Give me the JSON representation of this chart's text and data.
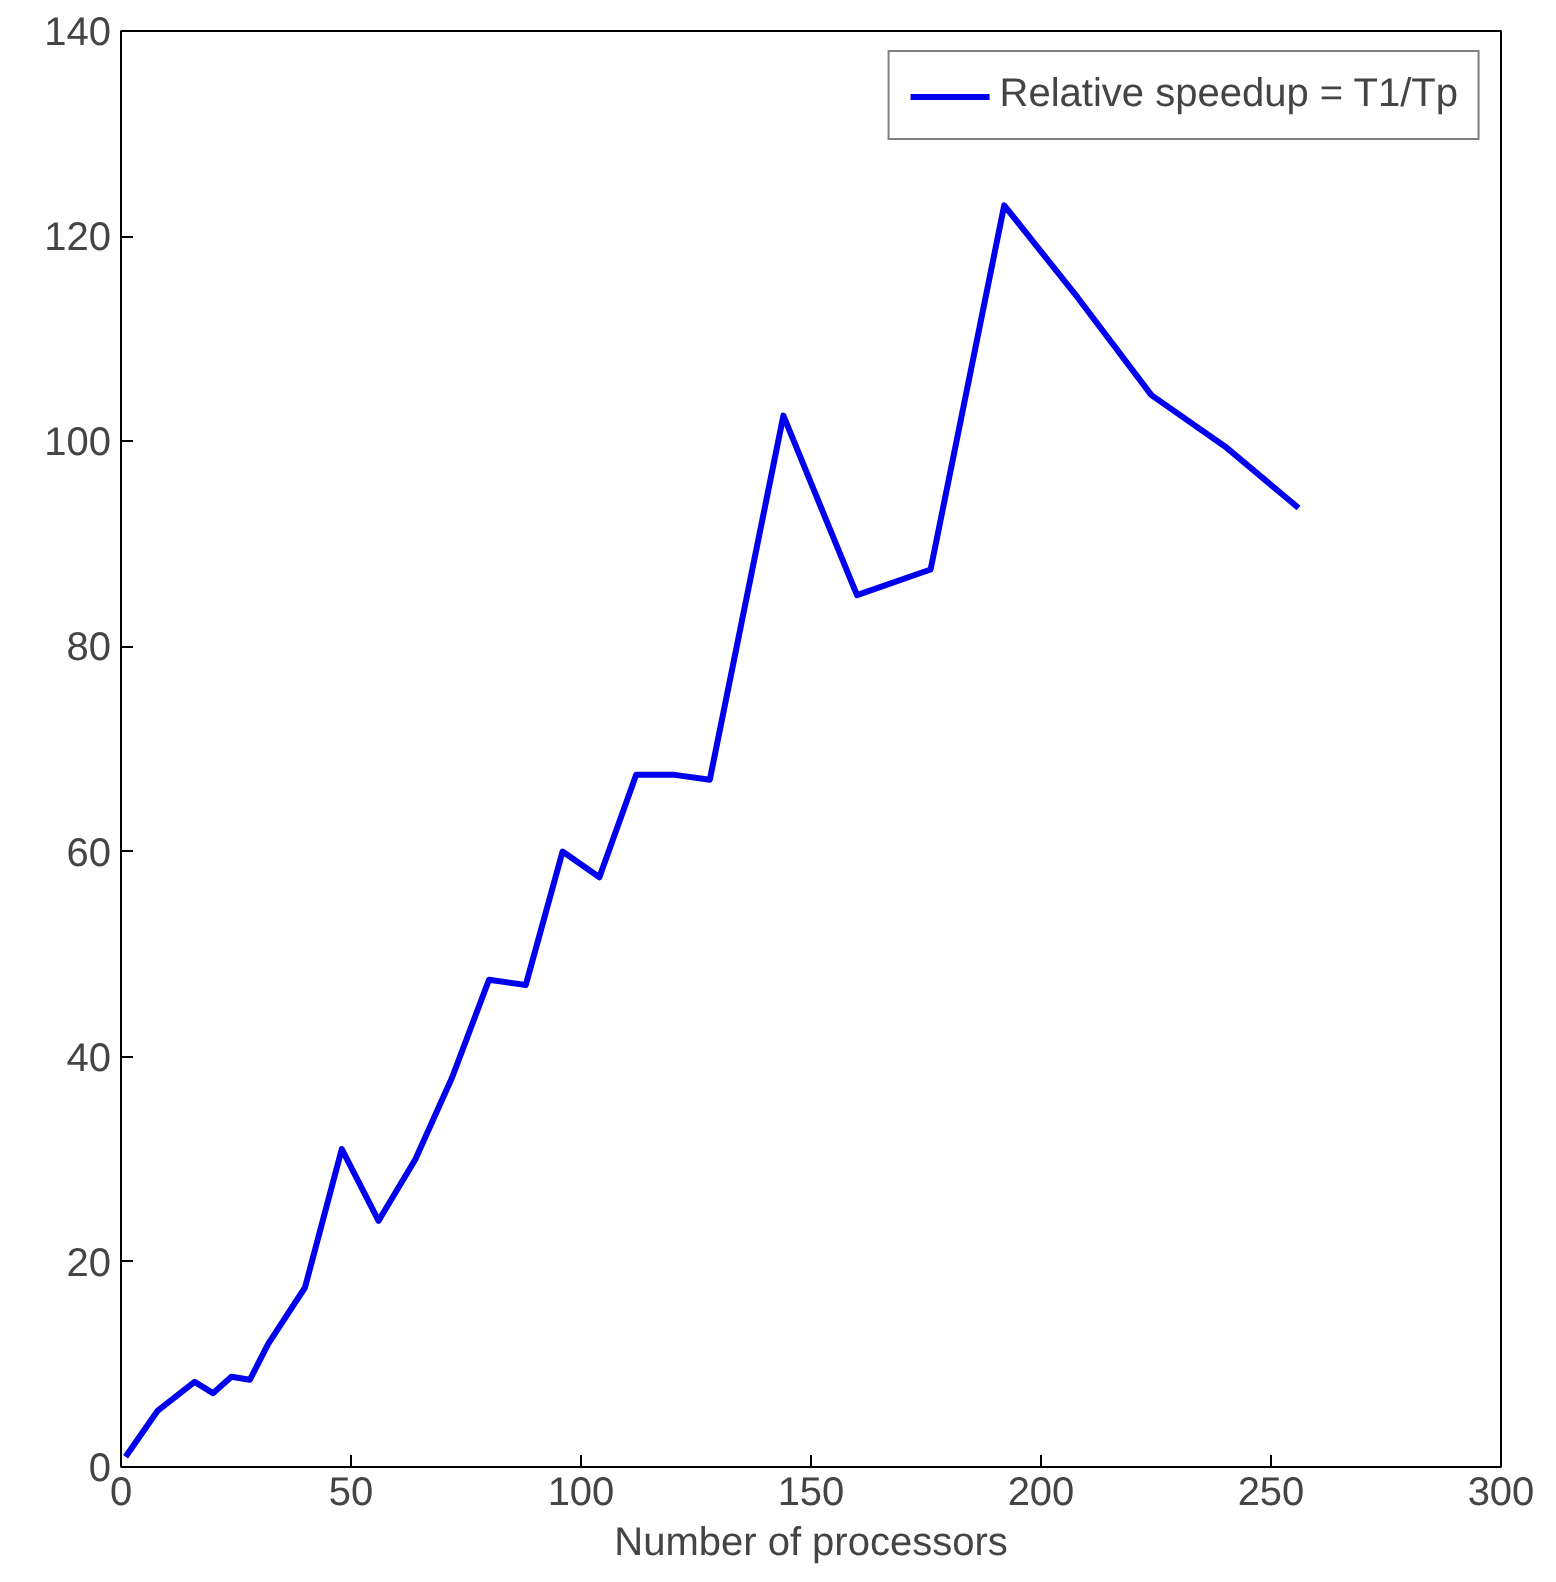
{
  "chart_data": {
    "type": "line",
    "xlabel": "Number of processors",
    "x": [
      1,
      8,
      16,
      20,
      24,
      28,
      32,
      40,
      48,
      56,
      64,
      72,
      80,
      88,
      96,
      104,
      112,
      120,
      128,
      144,
      160,
      176,
      192,
      208,
      224,
      240,
      256
    ],
    "series": [
      {
        "name": "Relative speedup = T1/Tp",
        "color": "#0000ee",
        "values": [
          1,
          5.5,
          8.3,
          7.2,
          8.8,
          8.5,
          12,
          17.5,
          31,
          24,
          30,
          38,
          47.5,
          47,
          60,
          57.5,
          67.5,
          67.5,
          67,
          102.5,
          85,
          87.5,
          123,
          114,
          104.5,
          99.5,
          93.5
        ]
      }
    ],
    "xlim": [
      0,
      300
    ],
    "xticks": [
      0,
      50,
      100,
      150,
      200,
      250,
      300
    ],
    "ylim": [
      0,
      140
    ],
    "yticks": [
      0,
      20,
      40,
      60,
      80,
      100,
      120,
      140
    ],
    "grid": false,
    "legend": "top right",
    "marker": "none",
    "line_style": "solid"
  }
}
